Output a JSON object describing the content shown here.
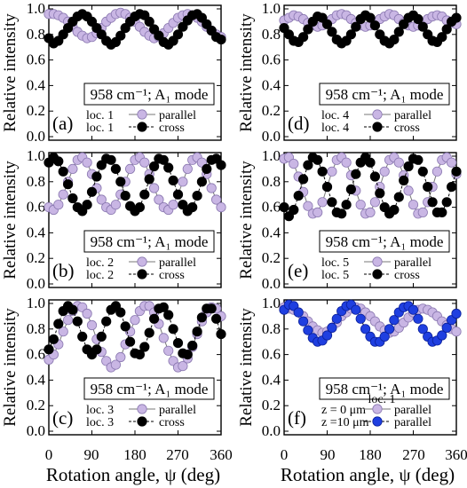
{
  "chart_data": [
    {
      "panel": "(a)",
      "type": "scatter",
      "ylabel": "Relative intensity",
      "ylim": [
        0,
        1.0
      ],
      "xlim": [
        0,
        360
      ],
      "yticks": [
        "0.0",
        "0.2",
        "0.4",
        "0.6",
        "0.8",
        "1.0"
      ],
      "xticks": [],
      "mode_label": "958 cm⁻¹; A₁ mode",
      "series": [
        {
          "loc": "loc. 1",
          "name": "parallel",
          "color": "#c9b6e4",
          "edge": "#8a78b0",
          "values": [
            0.96,
            0.96,
            0.95,
            0.93,
            0.9,
            0.86,
            0.82,
            0.79,
            0.77,
            0.78,
            0.81,
            0.85,
            0.9,
            0.93,
            0.96,
            0.97,
            0.96,
            0.93,
            0.9,
            0.86,
            0.82,
            0.79,
            0.77,
            0.78,
            0.81,
            0.85,
            0.89,
            0.93,
            0.95,
            0.96,
            0.95,
            0.93,
            0.9,
            0.86,
            0.83,
            0.8,
            0.78
          ]
        },
        {
          "loc": "loc. 1",
          "name": "cross",
          "color": "#000000",
          "edge": "#000000",
          "values": [
            0.77,
            0.73,
            0.75,
            0.8,
            0.85,
            0.9,
            0.94,
            0.96,
            0.94,
            0.9,
            0.85,
            0.8,
            0.75,
            0.72,
            0.74,
            0.79,
            0.85,
            0.9,
            0.94,
            0.96,
            0.95,
            0.9,
            0.84,
            0.79,
            0.74,
            0.72,
            0.75,
            0.8,
            0.86,
            0.91,
            0.95,
            0.96,
            0.93,
            0.88,
            0.83,
            0.78,
            0.76
          ]
        }
      ]
    },
    {
      "panel": "(b)",
      "type": "scatter",
      "ylabel": "Relative intensity",
      "ylim": [
        0,
        1.0
      ],
      "xlim": [
        0,
        360
      ],
      "yticks": [
        "0.0",
        "0.2",
        "0.4",
        "0.6",
        "0.8",
        "1.0"
      ],
      "xticks": [],
      "mode_label": "958 cm⁻¹; A₁ mode",
      "series": [
        {
          "loc": "loc. 2",
          "name": "parallel",
          "color": "#c9b6e4",
          "edge": "#8a78b0",
          "values": [
            0.6,
            0.58,
            0.62,
            0.7,
            0.8,
            0.9,
            0.97,
            0.99,
            0.95,
            0.86,
            0.75,
            0.66,
            0.6,
            0.58,
            0.62,
            0.7,
            0.8,
            0.9,
            0.97,
            0.99,
            0.95,
            0.86,
            0.75,
            0.66,
            0.6,
            0.58,
            0.62,
            0.7,
            0.8,
            0.9,
            0.97,
            0.99,
            0.95,
            0.86,
            0.75,
            0.66,
            0.6
          ]
        },
        {
          "loc": "loc. 2",
          "name": "cross",
          "color": "#000000",
          "edge": "#000000",
          "values": [
            0.95,
            0.99,
            0.96,
            0.88,
            0.78,
            0.67,
            0.6,
            0.57,
            0.62,
            0.72,
            0.84,
            0.93,
            0.98,
            0.97,
            0.9,
            0.8,
            0.69,
            0.61,
            0.57,
            0.6,
            0.7,
            0.82,
            0.92,
            0.98,
            0.97,
            0.91,
            0.81,
            0.7,
            0.62,
            0.57,
            0.6,
            0.69,
            0.8,
            0.9,
            0.97,
            0.98,
            0.93
          ]
        }
      ]
    },
    {
      "panel": "(c)",
      "type": "scatter",
      "ylabel": "Relative intensity",
      "ylim": [
        0,
        1.0
      ],
      "xlim": [
        0,
        360
      ],
      "yticks": [
        "0.0",
        "0.2",
        "0.4",
        "0.6",
        "0.8",
        "1.0"
      ],
      "xticks": [],
      "mode_label": "958 cm⁻¹; A₁ mode",
      "series": [
        {
          "loc": "loc. 3",
          "name": "parallel",
          "color": "#c9b6e4",
          "edge": "#8a78b0",
          "values": [
            0.56,
            0.6,
            0.68,
            0.78,
            0.87,
            0.94,
            0.98,
            0.97,
            0.92,
            0.83,
            0.72,
            0.62,
            0.55,
            0.5,
            0.52,
            0.58,
            0.68,
            0.78,
            0.87,
            0.94,
            0.98,
            0.98,
            0.93,
            0.84,
            0.73,
            0.63,
            0.55,
            0.5,
            0.51,
            0.57,
            0.66,
            0.76,
            0.86,
            0.93,
            0.97,
            0.96,
            0.9
          ]
        },
        {
          "loc": "loc. 3",
          "name": "cross",
          "color": "#000000",
          "edge": "#000000",
          "values": [
            0.64,
            0.72,
            0.84,
            0.94,
            0.98,
            0.95,
            0.86,
            0.74,
            0.64,
            0.6,
            0.64,
            0.74,
            0.86,
            0.95,
            0.98,
            0.93,
            0.82,
            0.7,
            0.61,
            0.6,
            0.66,
            0.77,
            0.88,
            0.96,
            0.97,
            0.91,
            0.8,
            0.69,
            0.61,
            0.6,
            0.67,
            0.78,
            0.89,
            0.96,
            0.96,
            0.88,
            0.76
          ]
        }
      ]
    },
    {
      "panel": "(d)",
      "type": "scatter",
      "ylabel": "",
      "ylim": [
        0,
        1.0
      ],
      "xlim": [
        0,
        360
      ],
      "yticks": [
        "0.0",
        "0.2",
        "0.4",
        "0.6",
        "0.8",
        "1.0"
      ],
      "xticks": [],
      "mode_label": "958 cm⁻¹; A₁ mode",
      "series": [
        {
          "loc": "loc. 4",
          "name": "parallel",
          "color": "#c9b6e4",
          "edge": "#8a78b0",
          "values": [
            0.91,
            0.93,
            0.95,
            0.94,
            0.92,
            0.89,
            0.87,
            0.86,
            0.87,
            0.89,
            0.92,
            0.95,
            0.96,
            0.95,
            0.92,
            0.89,
            0.87,
            0.86,
            0.87,
            0.89,
            0.92,
            0.94,
            0.96,
            0.95,
            0.92,
            0.89,
            0.87,
            0.86,
            0.87,
            0.89,
            0.92,
            0.94,
            0.95,
            0.94,
            0.91,
            0.89,
            0.88
          ]
        },
        {
          "loc": "loc. 4",
          "name": "cross",
          "color": "#000000",
          "edge": "#000000",
          "values": [
            0.85,
            0.8,
            0.75,
            0.74,
            0.78,
            0.84,
            0.9,
            0.94,
            0.93,
            0.88,
            0.82,
            0.76,
            0.73,
            0.75,
            0.8,
            0.86,
            0.92,
            0.95,
            0.93,
            0.87,
            0.8,
            0.75,
            0.73,
            0.76,
            0.82,
            0.88,
            0.93,
            0.95,
            0.92,
            0.86,
            0.8,
            0.75,
            0.74,
            0.78,
            0.84,
            0.9,
            0.93
          ]
        }
      ]
    },
    {
      "panel": "(e)",
      "type": "scatter",
      "ylabel": "",
      "ylim": [
        0,
        1.0
      ],
      "xlim": [
        0,
        360
      ],
      "yticks": [
        "0.0",
        "0.2",
        "0.4",
        "0.6",
        "0.8",
        "1.0"
      ],
      "xticks": [],
      "mode_label": "958 cm⁻¹; A₁ mode",
      "series": [
        {
          "loc": "loc. 5",
          "name": "parallel",
          "color": "#c9b6e4",
          "edge": "#8a78b0",
          "values": [
            0.98,
            0.99,
            0.94,
            0.84,
            0.72,
            0.61,
            0.55,
            0.56,
            0.64,
            0.76,
            0.88,
            0.97,
            0.99,
            0.95,
            0.85,
            0.73,
            0.62,
            0.55,
            0.56,
            0.64,
            0.76,
            0.88,
            0.97,
            0.99,
            0.95,
            0.85,
            0.73,
            0.62,
            0.55,
            0.56,
            0.64,
            0.76,
            0.88,
            0.97,
            0.99,
            0.95,
            0.86
          ]
        },
        {
          "loc": "loc. 5",
          "name": "cross",
          "color": "#000000",
          "edge": "#000000",
          "values": [
            0.6,
            0.53,
            0.58,
            0.69,
            0.82,
            0.93,
            0.99,
            0.97,
            0.88,
            0.76,
            0.64,
            0.56,
            0.55,
            0.62,
            0.74,
            0.86,
            0.95,
            0.99,
            0.95,
            0.84,
            0.71,
            0.6,
            0.55,
            0.58,
            0.68,
            0.81,
            0.92,
            0.98,
            0.97,
            0.88,
            0.76,
            0.64,
            0.56,
            0.56,
            0.64,
            0.76,
            0.88
          ]
        }
      ]
    },
    {
      "panel": "(f)",
      "type": "scatter",
      "ylabel": "",
      "ylim": [
        0,
        1.0
      ],
      "xlim": [
        0,
        360
      ],
      "yticks": [
        "0.0",
        "0.2",
        "0.4",
        "0.6",
        "0.8",
        "1.0"
      ],
      "xticks": [],
      "mode_label": "958 cm⁻¹; A₁ mode",
      "legend_header": "loc. 1",
      "series": [
        {
          "loc": "z = 0 μm",
          "name": "parallel",
          "color": "#c9b6e4",
          "edge": "#8a78b0",
          "values": [
            0.97,
            0.96,
            0.95,
            0.93,
            0.9,
            0.86,
            0.82,
            0.79,
            0.77,
            0.78,
            0.81,
            0.85,
            0.9,
            0.93,
            0.96,
            0.97,
            0.96,
            0.93,
            0.9,
            0.86,
            0.82,
            0.79,
            0.77,
            0.78,
            0.81,
            0.85,
            0.89,
            0.93,
            0.95,
            0.96,
            0.95,
            0.93,
            0.9,
            0.86,
            0.83,
            0.8,
            0.78
          ]
        },
        {
          "loc": "z =10 μm",
          "name": "parallel",
          "color": "#1f3fe0",
          "edge": "#0a1f9a",
          "values": [
            0.95,
            0.99,
            0.98,
            0.93,
            0.86,
            0.79,
            0.73,
            0.7,
            0.71,
            0.75,
            0.81,
            0.88,
            0.94,
            0.98,
            0.99,
            0.95,
            0.88,
            0.8,
            0.74,
            0.7,
            0.7,
            0.74,
            0.8,
            0.87,
            0.93,
            0.97,
            0.98,
            0.95,
            0.88,
            0.8,
            0.74,
            0.7,
            0.71,
            0.75,
            0.81,
            0.87,
            0.92
          ]
        }
      ]
    }
  ],
  "shared_y_label": "Relative intensity",
  "shared_x_label": "Rotation angle, ψ (deg)",
  "shared_xticks": [
    "0",
    "90",
    "180",
    "270",
    "360"
  ]
}
